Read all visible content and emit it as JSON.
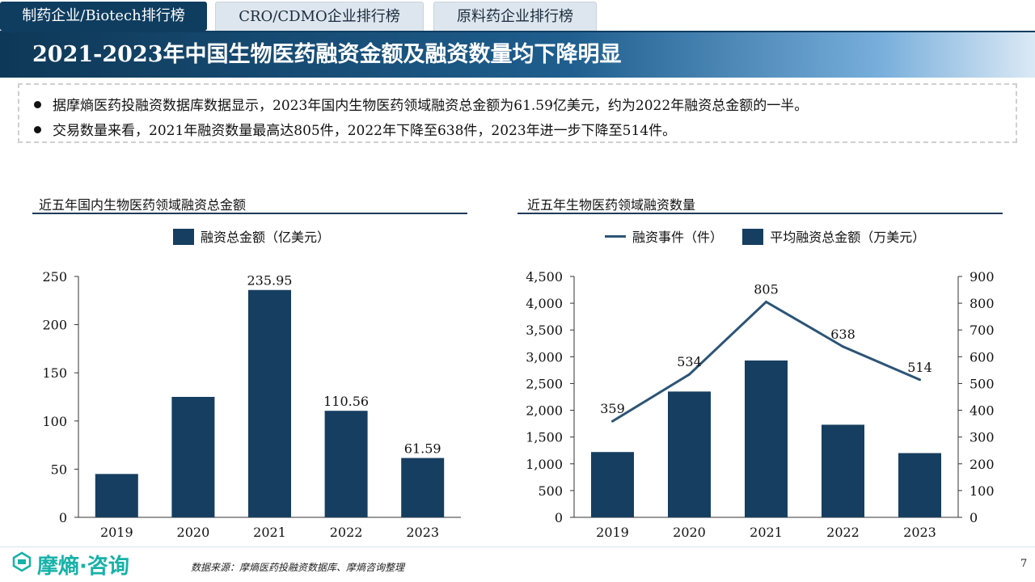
{
  "tabs": [
    {
      "label": "制药企业/Biotech排行榜"
    },
    {
      "label": "CRO/CDMO企业排行榜"
    },
    {
      "label": "原料药企业排行榜"
    }
  ],
  "page_title": "2021-2023年中国生物医药融资金额及融资数量均下降明显",
  "bullets": [
    "据摩熵医药投融资数据库数据显示，2023年国内生物医药领域融资总金额为61.59亿美元，约为2022年融资总金额的一半。",
    "交易数量来看，2021年融资数量最高达805件，2022年下降至638件，2023年进一步下降至514件。"
  ],
  "colors": {
    "bar": "#163e60",
    "line": "#2c5476",
    "title_bar": "#0f3d60",
    "brand": "#17b2a8"
  },
  "chart_data": [
    {
      "type": "bar",
      "title": "近五年国内生物医药领域融资总金额",
      "categories": [
        "2019",
        "2020",
        "2021",
        "2022",
        "2023"
      ],
      "series": [
        {
          "name": "融资总金额（亿美元）",
          "values": [
            45,
            125,
            235.95,
            110.56,
            61.59
          ]
        }
      ],
      "data_labels": [
        "",
        "",
        "235.95",
        "110.56",
        "61.59"
      ],
      "ylim": [
        0,
        250
      ],
      "yticks": [
        0,
        50,
        100,
        150,
        200,
        250
      ],
      "ytick_labels": [
        "0",
        "50",
        "100",
        "150",
        "200",
        "250"
      ],
      "legend": "top-center",
      "grid": false
    },
    {
      "type": "bar+line",
      "title": "近五年生物医药领域融资数量",
      "categories": [
        "2019",
        "2020",
        "2021",
        "2022",
        "2023"
      ],
      "series": [
        {
          "name": "融资事件（件）",
          "type": "line",
          "axis": "right",
          "values": [
            359,
            534,
            805,
            638,
            514
          ],
          "labels": [
            "359",
            "534",
            "805",
            "638",
            "514"
          ]
        },
        {
          "name": "平均融资总金额（万美元）",
          "type": "bar",
          "axis": "left",
          "values": [
            1220,
            2350,
            2930,
            1730,
            1200
          ]
        }
      ],
      "ylim_left": [
        0,
        4500
      ],
      "yticks_left": [
        0,
        500,
        1000,
        1500,
        2000,
        2500,
        3000,
        3500,
        4000,
        4500
      ],
      "ytick_labels_left": [
        "0",
        "500",
        "1,000",
        "1,500",
        "2,000",
        "2,500",
        "3,000",
        "3,500",
        "4,000",
        "4,500"
      ],
      "ylim_right": [
        0,
        900
      ],
      "yticks_right": [
        0,
        100,
        200,
        300,
        400,
        500,
        600,
        700,
        800,
        900
      ],
      "ytick_labels_right": [
        "0",
        "100",
        "200",
        "300",
        "400",
        "500",
        "600",
        "700",
        "800",
        "900"
      ],
      "legend": "top-center",
      "grid": false
    }
  ],
  "footer": {
    "logo_text": "摩熵·咨询",
    "source": "数据来源：摩熵医药投融资数据库、摩熵咨询整理",
    "page_number": "7"
  }
}
